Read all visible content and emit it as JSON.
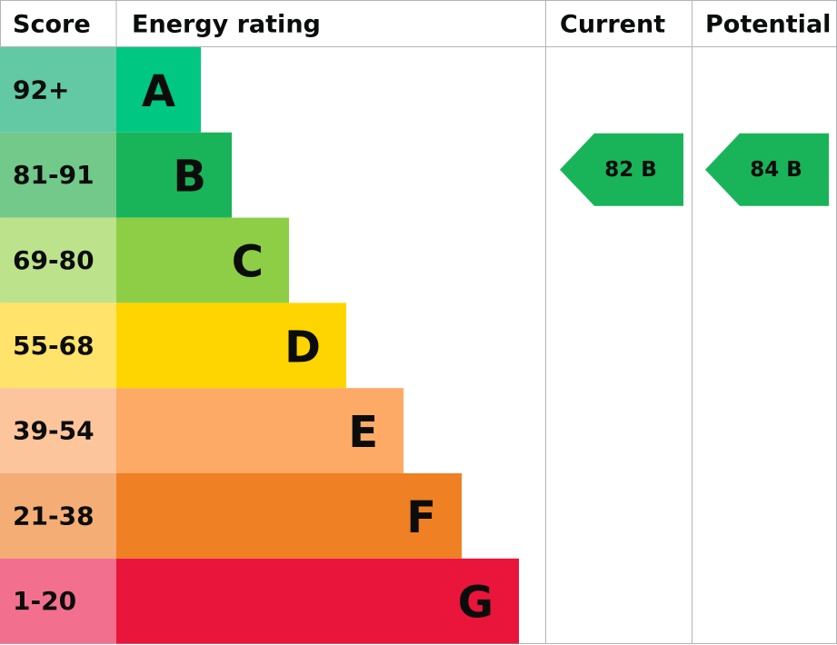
{
  "header": {
    "score": "Score",
    "rating": "Energy rating",
    "current": "Current",
    "potential": "Potential"
  },
  "bands": [
    {
      "score": "92+",
      "letter": "A"
    },
    {
      "score": "81-91",
      "letter": "B"
    },
    {
      "score": "69-80",
      "letter": "C"
    },
    {
      "score": "55-68",
      "letter": "D"
    },
    {
      "score": "39-54",
      "letter": "E"
    },
    {
      "score": "21-38",
      "letter": "F"
    },
    {
      "score": "1-20",
      "letter": "G"
    }
  ],
  "current": "82 B",
  "potential": "84 B"
}
